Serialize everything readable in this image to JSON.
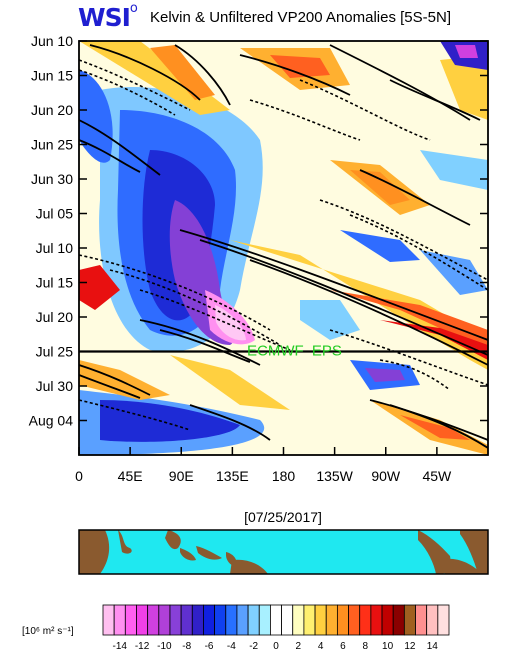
{
  "logo": {
    "text": "WSI",
    "superscript": "o"
  },
  "title": "Kelvin & Unfiltered VP200 Anomalies [5S-5N]",
  "date_label": "[07/25/2017]",
  "forecast_label": {
    "part1": "ECMWF",
    "part2": "EPS",
    "color1": "#22cc22",
    "color2": "#22cc22"
  },
  "map": {
    "ocean_color": "#1fe8f0",
    "land_color": "#8a5a2f"
  },
  "chart_data": {
    "type": "heatmap",
    "title": "Kelvin & Unfiltered VP200 Anomalies [5S-5N]",
    "x_ticks": [
      "0",
      "45E",
      "90E",
      "135E",
      "180",
      "135W",
      "90W",
      "45W"
    ],
    "x_tick_lon": [
      0,
      45,
      90,
      135,
      180,
      225,
      270,
      315
    ],
    "x_range_lon": [
      0,
      360
    ],
    "y_ticks": [
      "Jun 10",
      "Jun 15",
      "Jun 20",
      "Jun 25",
      "Jun 30",
      "Jul 05",
      "Jul 10",
      "Jul 15",
      "Jul 20",
      "Jul 25",
      "Jul 30",
      "Aug 04"
    ],
    "y_tick_day": [
      0,
      5,
      10,
      15,
      20,
      25,
      30,
      35,
      40,
      45,
      50,
      55
    ],
    "y_range_days": [
      0,
      60
    ],
    "forecast_start_day": 45,
    "colorbar": {
      "unit_label": "[10⁶ m² s⁻¹]",
      "tick_labels": [
        "-14",
        "-12",
        "-10",
        "-8",
        "-6",
        "-4",
        "-2",
        "0",
        "2",
        "4",
        "6",
        "8",
        "10",
        "12",
        "14"
      ],
      "colors": [
        "#ffc0f0",
        "#ff90f0",
        "#ff60f0",
        "#f040e8",
        "#d040e0",
        "#b040d8",
        "#8840d8",
        "#6030d0",
        "#3020c8",
        "#1020e0",
        "#1040f0",
        "#2870ff",
        "#5aa0ff",
        "#80d0ff",
        "#a8f0ff",
        "#ffffff",
        "#ffffff",
        "#fffec0",
        "#fff070",
        "#ffd040",
        "#ffb030",
        "#ff9020",
        "#ff6020",
        "#ff3018",
        "#e81010",
        "#c00000",
        "#8a0000",
        "#a06020",
        "#ff9090",
        "#ffc0c0",
        "#ffe0e0"
      ]
    }
  }
}
